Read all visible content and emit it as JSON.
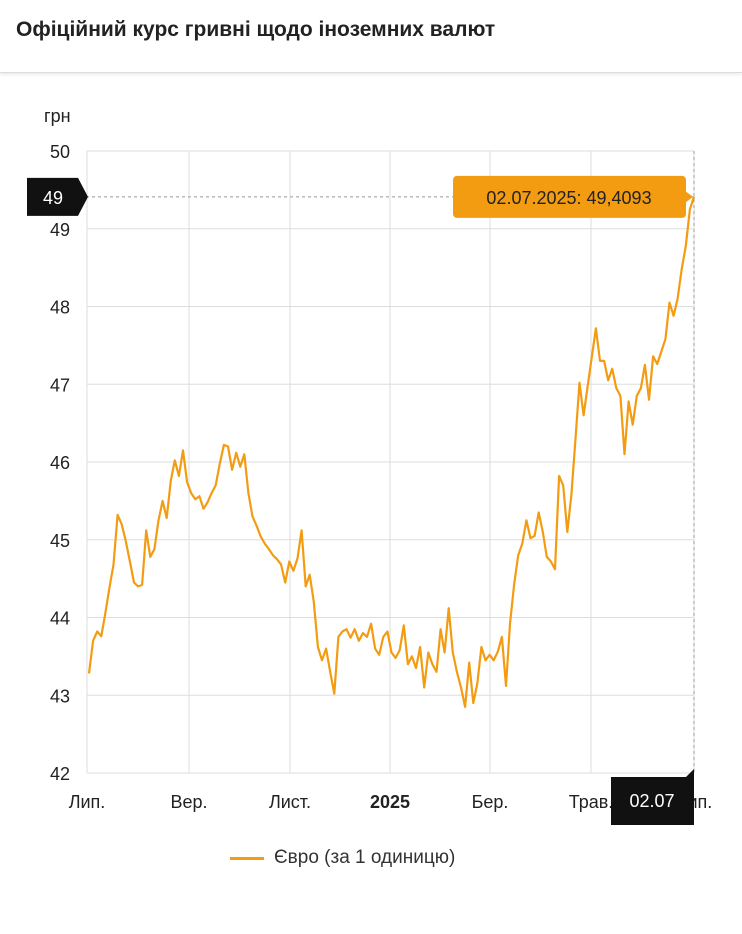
{
  "header": {
    "title": "Офіційний курс гривні щодо іноземних валют"
  },
  "chart_data": {
    "type": "line",
    "ylabel": "грн",
    "ylim": [
      42,
      50
    ],
    "yticks": [
      "42",
      "43",
      "44",
      "45",
      "46",
      "47",
      "48",
      "49",
      "50"
    ],
    "xticks": [
      {
        "label": "Лип.",
        "bold": false
      },
      {
        "label": "Вер.",
        "bold": false
      },
      {
        "label": "Лист.",
        "bold": false
      },
      {
        "label": "2025",
        "bold": true
      },
      {
        "label": "Бер.",
        "bold": false
      },
      {
        "label": "Трав.",
        "bold": false
      },
      {
        "label": "Лип.",
        "bold": false
      }
    ],
    "series": [
      {
        "name": "Євро (за 1 одиницю)",
        "color": "#f39c12",
        "values": [
          43.28,
          43.7,
          43.82,
          43.76,
          44.06,
          44.38,
          44.68,
          45.32,
          45.2,
          44.98,
          44.72,
          44.45,
          44.4,
          44.42,
          45.12,
          44.78,
          44.88,
          45.25,
          45.5,
          45.28,
          45.76,
          46.02,
          45.82,
          46.15,
          45.74,
          45.6,
          45.52,
          45.56,
          45.4,
          45.48,
          45.6,
          45.7,
          45.98,
          46.22,
          46.2,
          45.9,
          46.12,
          45.94,
          46.1,
          45.6,
          45.3,
          45.18,
          45.04,
          44.95,
          44.88,
          44.8,
          44.75,
          44.68,
          44.45,
          44.72,
          44.6,
          44.76,
          45.12,
          44.4,
          44.55,
          44.2,
          43.62,
          43.45,
          43.6,
          43.3,
          43.02,
          43.75,
          43.82,
          43.85,
          43.74,
          43.85,
          43.7,
          43.8,
          43.75,
          43.92,
          43.6,
          43.52,
          43.75,
          43.82,
          43.55,
          43.48,
          43.58,
          43.9,
          43.4,
          43.5,
          43.35,
          43.62,
          43.1,
          43.55,
          43.4,
          43.3,
          43.85,
          43.55,
          44.12,
          43.55,
          43.3,
          43.1,
          42.85,
          43.42,
          42.9,
          43.15,
          43.62,
          43.45,
          43.52,
          43.45,
          43.56,
          43.75,
          43.12,
          43.92,
          44.42,
          44.8,
          44.95,
          45.25,
          45.02,
          45.05,
          45.35,
          45.1,
          44.78,
          44.72,
          44.62,
          45.82,
          45.7,
          45.1,
          45.58,
          46.3,
          47.02,
          46.6,
          46.98,
          47.35,
          47.72,
          47.3,
          47.3,
          47.05,
          47.2,
          46.95,
          46.85,
          46.1,
          46.78,
          46.48,
          46.85,
          46.95,
          47.25,
          46.8,
          47.36,
          47.26,
          47.42,
          47.58,
          48.05,
          47.88,
          48.1,
          48.48,
          48.78,
          49.25,
          49.41
        ]
      }
    ],
    "annotations": {
      "crosshair_y": "49",
      "crosshair_x": "02.07",
      "tooltip": "02.07.2025: 49,4093",
      "last_value": 49.4093
    },
    "grid": true,
    "legend": "bottom-center"
  }
}
